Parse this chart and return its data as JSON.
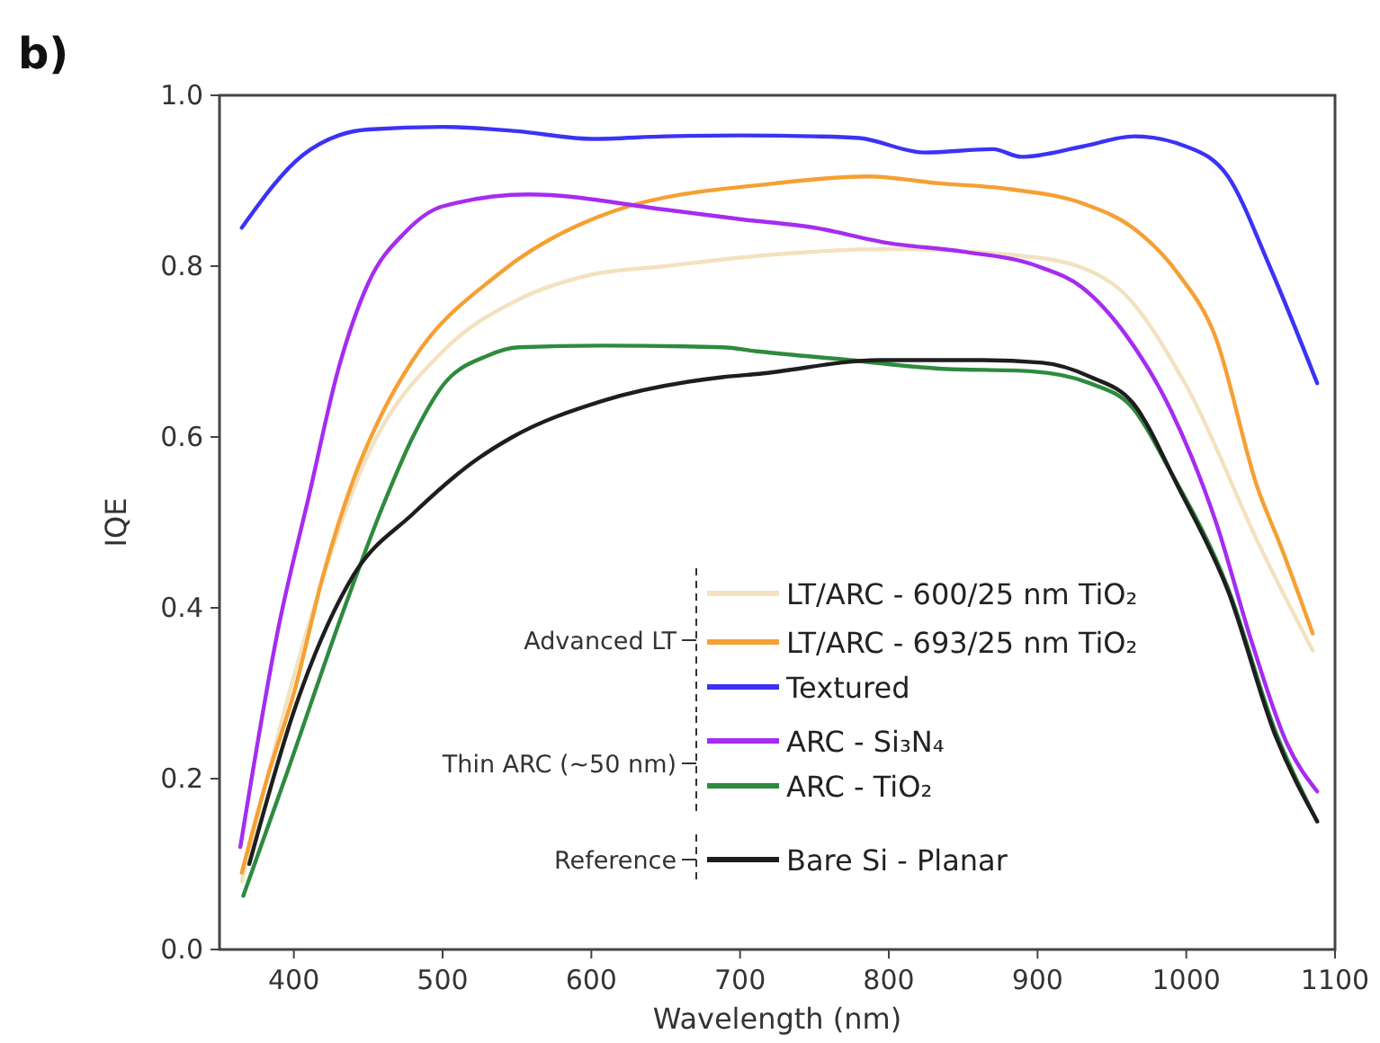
{
  "chart_data": {
    "type": "line",
    "title": "b)",
    "xlabel": "Wavelength (nm)",
    "ylabel": "IQE",
    "xlim": [
      350,
      1100
    ],
    "xticks": [
      400,
      500,
      600,
      700,
      800,
      900,
      1000,
      1100
    ],
    "ylim": [
      0,
      1
    ],
    "yticks": [
      {
        "value": 0,
        "label": "0.0"
      },
      {
        "value": 0.2,
        "label": "0.2"
      },
      {
        "value": 0.4,
        "label": "0.4"
      },
      {
        "value": 0.6,
        "label": "0.6"
      },
      {
        "value": 0.8,
        "label": "0.8"
      },
      {
        "value": 1,
        "label": "1.0"
      }
    ],
    "grid": false,
    "legend": "bottom",
    "line_style": "solid",
    "marker": "none",
    "annotations": [
      "Advanced LT",
      "Thin ARC (~50 nm)",
      "Reference"
    ],
    "series": [
      {
        "name": "LT/ARC - 600/25 nm TiO₂",
        "color": "#f3e2c0",
        "x": [
          365,
          400,
          450,
          500,
          550,
          600,
          650,
          700,
          800,
          900,
          950,
          1000,
          1050,
          1085
        ],
        "values": [
          0.08,
          0.32,
          0.58,
          0.7,
          0.76,
          0.79,
          0.8,
          0.81,
          0.82,
          0.81,
          0.78,
          0.66,
          0.47,
          0.35
        ]
      },
      {
        "name": "LT/ARC - 693/25 nm TiO₂",
        "color": "#f5a033",
        "x": [
          365,
          382,
          400,
          420,
          440,
          460,
          480,
          537,
          616,
          724,
          785,
          834,
          882,
          931,
          964,
          995,
          1019,
          1048,
          1064,
          1085
        ],
        "values": [
          0.09,
          0.2,
          0.3,
          0.44,
          0.55,
          0.63,
          0.69,
          0.79,
          0.865,
          0.897,
          0.905,
          0.897,
          0.89,
          0.873,
          0.845,
          0.79,
          0.72,
          0.54,
          0.47,
          0.37
        ]
      },
      {
        "name": "Textured",
        "color": "#3c32f5",
        "x": [
          365,
          406,
          430,
          450,
          500,
          550,
          600,
          650,
          700,
          750,
          780,
          824,
          870,
          889,
          930,
          965,
          1000,
          1028,
          1056,
          1088
        ],
        "values": [
          0.845,
          0.93,
          0.953,
          0.96,
          0.963,
          0.958,
          0.949,
          0.952,
          0.953,
          0.952,
          0.95,
          0.933,
          0.937,
          0.928,
          0.94,
          0.952,
          0.94,
          0.905,
          0.8,
          0.663
        ]
      },
      {
        "name": "ARC - Si₃N₄",
        "color": "#a52cf0",
        "x": [
          364,
          390,
          410,
          430,
          450,
          475,
          500,
          558,
          650,
          700,
          750,
          800,
          850,
          900,
          930,
          960,
          990,
          1020,
          1044,
          1068,
          1088
        ],
        "values": [
          0.12,
          0.38,
          0.53,
          0.68,
          0.78,
          0.84,
          0.87,
          0.884,
          0.866,
          0.855,
          0.845,
          0.827,
          0.817,
          0.8,
          0.775,
          0.718,
          0.63,
          0.5,
          0.36,
          0.24,
          0.185
        ]
      },
      {
        "name": "ARC - TiO₂",
        "color": "#2e8b3e",
        "x": [
          366,
          394,
          434,
          460,
          480,
          500,
          530,
          551,
          607,
          688,
          713,
          774,
          834,
          895,
          935,
          964,
          988,
          1028,
          1060,
          1088
        ],
        "values": [
          0.063,
          0.2,
          0.4,
          0.52,
          0.6,
          0.66,
          0.695,
          0.705,
          0.707,
          0.705,
          0.7,
          0.69,
          0.68,
          0.677,
          0.663,
          0.634,
          0.564,
          0.423,
          0.255,
          0.15
        ]
      },
      {
        "name": "Bare Si - Planar",
        "color": "#1e1e1e",
        "x": [
          370,
          401,
          440,
          480,
          520,
          547,
          607,
          688,
          713,
          794,
          863,
          903,
          936,
          964,
          995,
          1028,
          1060,
          1088
        ],
        "values": [
          0.1,
          0.284,
          0.438,
          0.51,
          0.57,
          0.6,
          0.642,
          0.67,
          0.674,
          0.69,
          0.69,
          0.687,
          0.67,
          0.64,
          0.54,
          0.42,
          0.25,
          0.15
        ]
      }
    ]
  }
}
